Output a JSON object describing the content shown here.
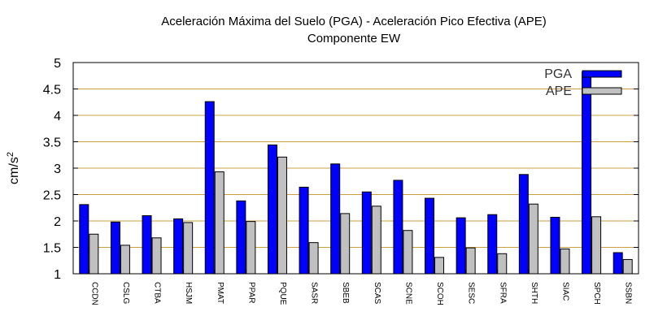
{
  "chart_data": {
    "type": "bar",
    "title": "Aceleración Máxima del Suelo (PGA) -  Aceleración Pico Efectiva (APE)",
    "subtitle": "Componente EW",
    "ylabel_base": "cm/s",
    "ylabel_exp": "2",
    "xlabel": "",
    "ylim": [
      1,
      5
    ],
    "yticks": [
      "1",
      "1.5",
      "2",
      "2.5",
      "3",
      "3.5",
      "4",
      "4.5",
      "5"
    ],
    "ytick_values": [
      1,
      1.5,
      2,
      2.5,
      3,
      3.5,
      4,
      4.5,
      5
    ],
    "grid": true,
    "legend_position": "top-right",
    "categories": [
      "CCDN",
      "CSLG",
      "CTBA",
      "HSJM",
      "PMAT",
      "PPAR",
      "PQUE",
      "SASR",
      "SBEB",
      "SCAS",
      "SCNE",
      "SCOH",
      "SESC",
      "SFRA",
      "SHTH",
      "SIAC",
      "SPCH",
      "SSBN"
    ],
    "series": [
      {
        "name": "PGA",
        "color": "#0000ff",
        "values": [
          2.31,
          1.98,
          2.1,
          2.04,
          4.26,
          2.38,
          3.44,
          2.64,
          3.08,
          2.55,
          2.77,
          2.43,
          2.06,
          2.12,
          2.88,
          2.07,
          4.82,
          1.4
        ]
      },
      {
        "name": "APE",
        "color": "#c0c0c0",
        "values": [
          1.75,
          1.54,
          1.68,
          1.97,
          2.93,
          1.99,
          3.21,
          1.59,
          2.14,
          2.28,
          1.82,
          1.31,
          1.49,
          1.38,
          2.32,
          1.47,
          2.08,
          1.27
        ]
      }
    ],
    "grid_color": "#c8a040"
  }
}
